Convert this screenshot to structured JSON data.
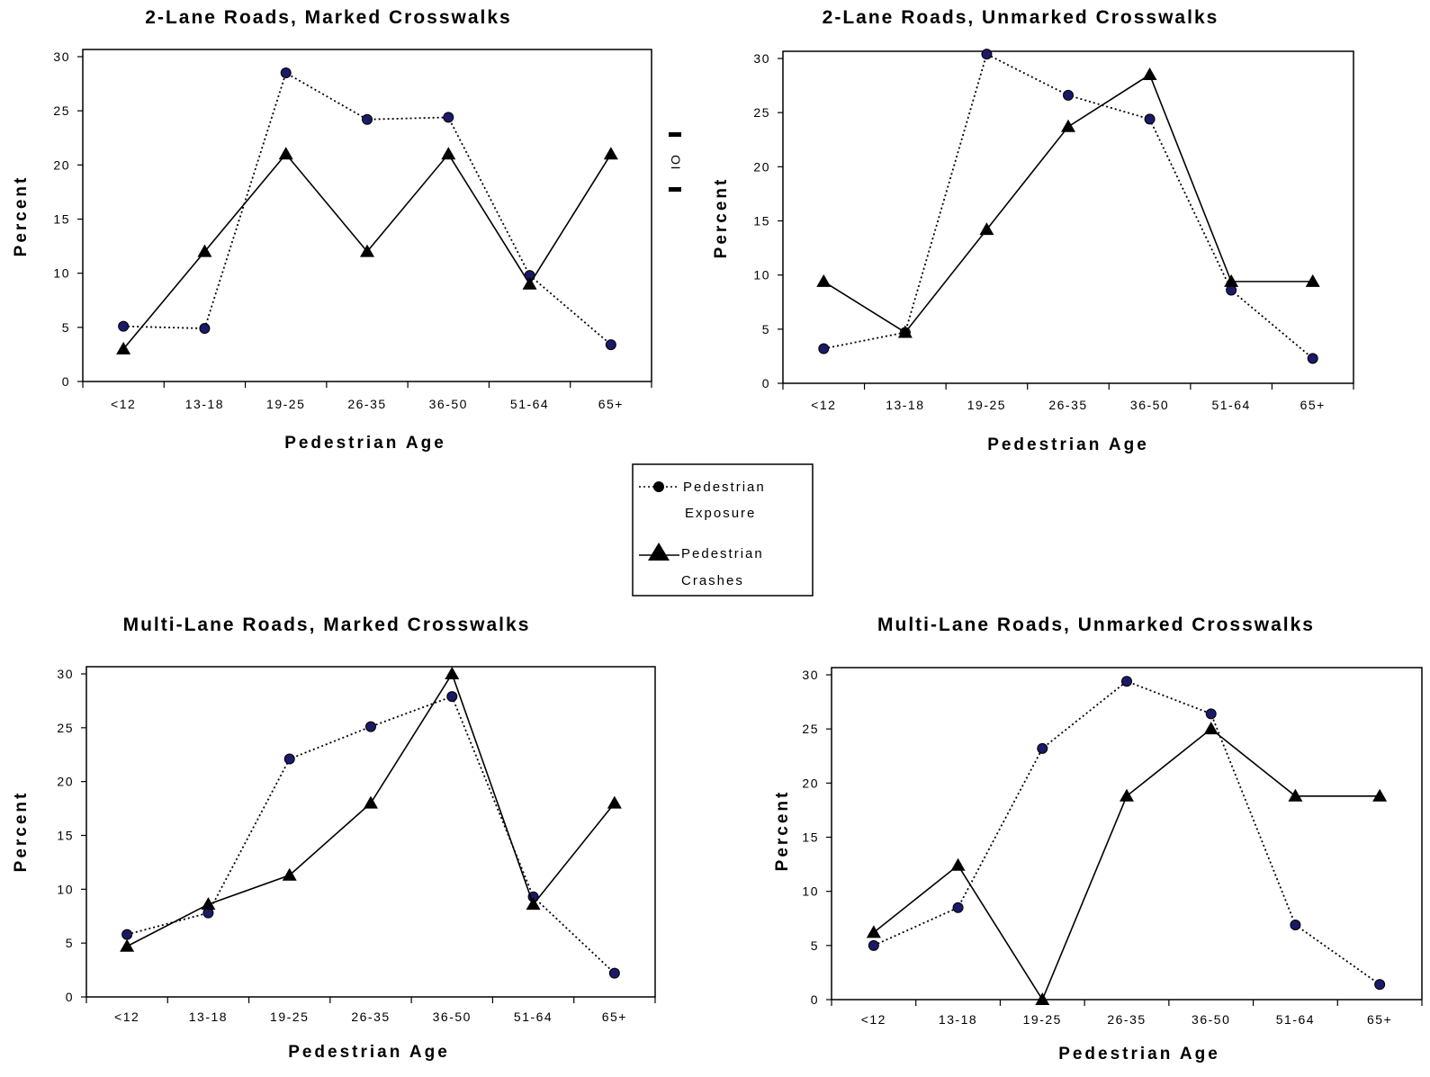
{
  "chart_data": [
    {
      "type": "line",
      "title": "2-Lane Roads, Marked Crosswalks",
      "xlabel": "Pedestrian Age",
      "ylabel": "Percent",
      "categories": [
        "<12",
        "13-18",
        "19-25",
        "26-35",
        "36-50",
        "51-64",
        "65+"
      ],
      "ylim": [
        0,
        30
      ],
      "yticks": [
        0,
        5,
        10,
        15,
        20,
        25,
        30
      ],
      "series": [
        {
          "name": "Pedestrian Exposure",
          "values": [
            5.1,
            4.9,
            28.5,
            24.2,
            24.4,
            9.8,
            3.4
          ]
        },
        {
          "name": "Pedestrian Crashes",
          "values": [
            3.0,
            12.0,
            21.0,
            12.0,
            21.0,
            9.0,
            21.0
          ]
        }
      ]
    },
    {
      "type": "line",
      "title": "2-Lane Roads, Unmarked Crosswalks",
      "xlabel": "Pedestrian Age",
      "ylabel": "Percent",
      "categories": [
        "<12",
        "13-18",
        "19-25",
        "26-35",
        "36-50",
        "51-64",
        "65+"
      ],
      "ylim": [
        0,
        30
      ],
      "yticks": [
        0,
        5,
        10,
        15,
        20,
        25,
        30
      ],
      "series": [
        {
          "name": "Pedestrian Exposure",
          "values": [
            3.2,
            4.7,
            30.4,
            26.6,
            24.4,
            8.6,
            2.3
          ]
        },
        {
          "name": "Pedestrian Crashes",
          "values": [
            9.4,
            4.7,
            14.2,
            23.7,
            28.5,
            9.4,
            9.4
          ]
        }
      ]
    },
    {
      "type": "line",
      "title": "Multi-Lane Roads, Marked Crosswalks",
      "xlabel": "Pedestrian Age",
      "ylabel": "Percent",
      "categories": [
        "<12",
        "13-18",
        "19-25",
        "26-35",
        "36-50",
        "51-64",
        "65+"
      ],
      "ylim": [
        0,
        30
      ],
      "yticks": [
        0,
        5,
        10,
        15,
        20,
        25,
        30
      ],
      "series": [
        {
          "name": "Pedestrian Exposure",
          "values": [
            5.8,
            7.8,
            22.1,
            25.1,
            27.9,
            9.3,
            2.2
          ]
        },
        {
          "name": "Pedestrian Crashes",
          "values": [
            4.7,
            8.6,
            11.3,
            18.0,
            30.0,
            8.6,
            18.0
          ]
        }
      ]
    },
    {
      "type": "line",
      "title": "Multi-Lane Roads, Unmarked Crosswalks",
      "xlabel": "Pedestrian Age",
      "ylabel": "Percent",
      "categories": [
        "<12",
        "13-18",
        "19-25",
        "26-35",
        "36-50",
        "51-64",
        "65+"
      ],
      "ylim": [
        0,
        30
      ],
      "yticks": [
        0,
        5,
        10,
        15,
        20,
        25,
        30
      ],
      "series": [
        {
          "name": "Pedestrian Exposure",
          "values": [
            5.0,
            8.5,
            23.2,
            29.4,
            26.4,
            6.9,
            1.4
          ]
        },
        {
          "name": "Pedestrian Crashes",
          "values": [
            6.2,
            12.4,
            0.0,
            18.8,
            25.0,
            18.8,
            18.8
          ]
        }
      ]
    }
  ],
  "legend": {
    "items": [
      {
        "line1": "Pedestrian",
        "line2": "Exposure"
      },
      {
        "line1": "Pedestrian",
        "line2": "Crashes"
      }
    ]
  },
  "stray_glyph": "OI"
}
